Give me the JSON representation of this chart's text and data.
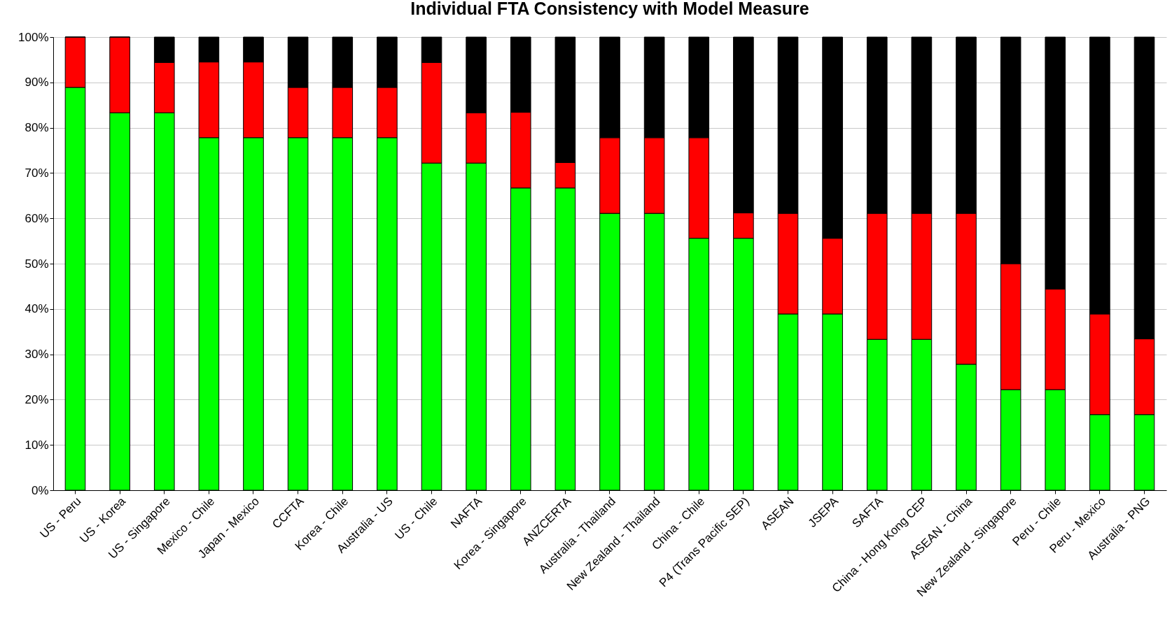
{
  "chart_data": {
    "type": "bar",
    "title": "Individual FTA Consistency with Model Measure",
    "stacked": true,
    "grid": "y",
    "legend": false,
    "categories": [
      "US - Peru",
      "US - Korea",
      "US - Singapore",
      "Mexico - Chile",
      "Japan - Mexico",
      "CCFTA",
      "Korea - Chile",
      "Australia - US",
      "US - Chile",
      "NAFTA",
      "Korea - Singapore",
      "ANZCERTA",
      "Australia - Thailand",
      "New Zealand - Thailand",
      "China - Chile",
      "P4 (Trans Pacific SEP)",
      "ASEAN",
      "JSEPA",
      "SAFTA",
      "China - Hong Kong CEP",
      "ASEAN - China",
      "New Zealand - Singapore",
      "Peru - Chile",
      "Peru - Mexico",
      "Australia - PNG"
    ],
    "series": [
      {
        "color": "#00ff00",
        "values": [
          88.9,
          83.3,
          83.3,
          77.8,
          77.8,
          77.8,
          77.8,
          77.8,
          72.2,
          72.2,
          66.7,
          66.7,
          61.1,
          61.1,
          55.6,
          55.6,
          38.9,
          38.9,
          33.3,
          33.3,
          27.8,
          22.2,
          22.2,
          16.7,
          16.7
        ]
      },
      {
        "color": "#ff0000",
        "values": [
          11.1,
          16.7,
          11.1,
          16.7,
          16.7,
          11.1,
          11.1,
          11.1,
          22.2,
          11.1,
          16.7,
          5.6,
          16.7,
          16.7,
          22.2,
          5.6,
          22.2,
          16.7,
          27.8,
          27.8,
          33.3,
          27.8,
          22.2,
          22.2,
          16.7
        ]
      },
      {
        "color": "#000000",
        "values": [
          0,
          0,
          5.6,
          5.5,
          5.5,
          11.1,
          11.1,
          11.1,
          5.6,
          16.7,
          16.6,
          27.7,
          22.2,
          22.2,
          22.2,
          38.8,
          38.9,
          44.4,
          38.9,
          38.9,
          38.9,
          50,
          55.6,
          61.1,
          66.6
        ]
      }
    ],
    "ylim": [
      0,
      100
    ],
    "yticks": [
      {
        "value": 0,
        "label": "0%"
      },
      {
        "value": 10,
        "label": "10%"
      },
      {
        "value": 20,
        "label": "20%"
      },
      {
        "value": 30,
        "label": "30%"
      },
      {
        "value": 40,
        "label": "40%"
      },
      {
        "value": 50,
        "label": "50%"
      },
      {
        "value": 60,
        "label": "60%"
      },
      {
        "value": 70,
        "label": "70%"
      },
      {
        "value": 80,
        "label": "80%"
      },
      {
        "value": 90,
        "label": "90%"
      },
      {
        "value": 100,
        "label": "100%"
      }
    ]
  }
}
